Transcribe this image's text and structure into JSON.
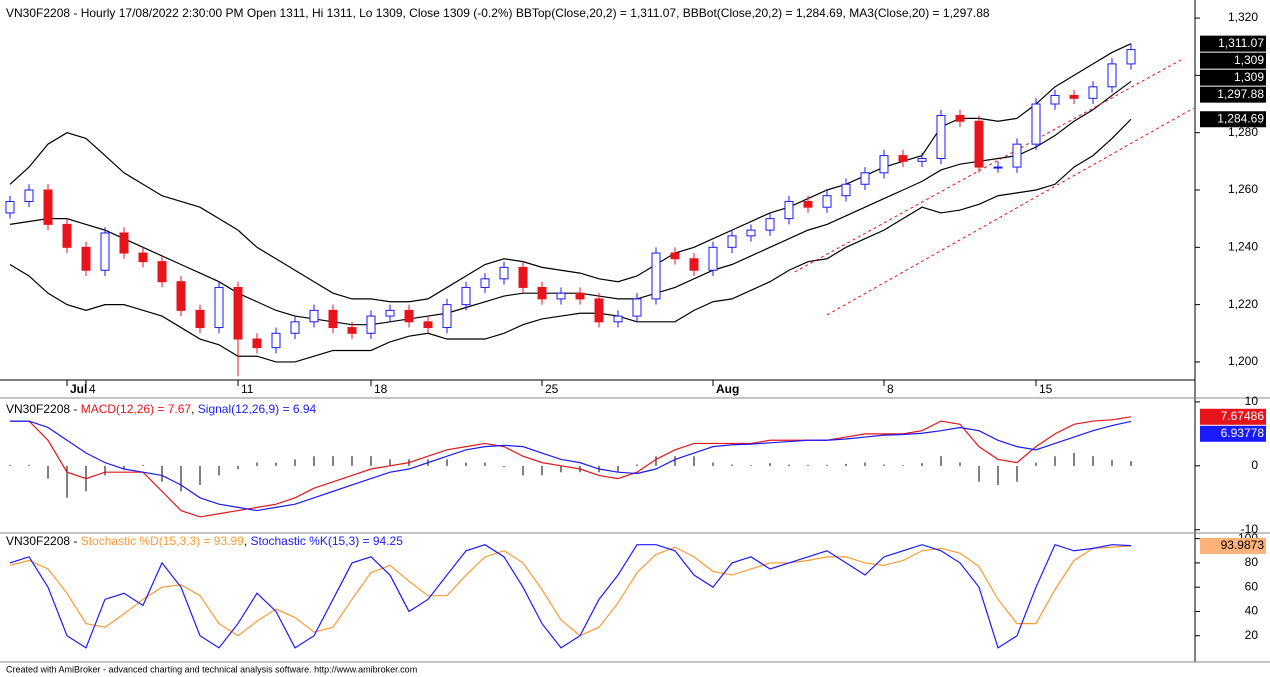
{
  "chart_data": [
    {
      "type": "candlestick",
      "title": "VN30F2208 - Hourly 17/08/2022 2:30:00 PM Open 1311, Hi 1311, Lo 1309, Close 1309 (-0.2%) BBTop(Close,20,2) = 1,311.07, BBBot(Close,20,2) = 1,284.69, MA3(Close,20) = 1,297.88",
      "categories": [
        null,
        null,
        null,
        "Jul",
        "4",
        null,
        null,
        null,
        null,
        null,
        null,
        null,
        "11",
        null,
        null,
        null,
        null,
        null,
        null,
        "18",
        null,
        null,
        null,
        null,
        null,
        null,
        null,
        null,
        "25",
        null,
        null,
        null,
        null,
        null,
        null,
        null,
        null,
        "Aug",
        null,
        null,
        null,
        null,
        null,
        null,
        null,
        null,
        "8",
        null,
        null,
        null,
        null,
        null,
        null,
        null,
        "15",
        null,
        null,
        null,
        null,
        null
      ],
      "open": [
        1252,
        1256,
        1260,
        1248,
        1240,
        1232,
        1245,
        1238,
        1235,
        1228,
        1218,
        1212,
        1226,
        1208,
        1205,
        1210,
        1214,
        1218,
        1212,
        1210,
        1216,
        1218,
        1214,
        1212,
        1220,
        1226,
        1229,
        1233,
        1226,
        1222,
        1224,
        1222,
        1214,
        1216,
        1222,
        1238,
        1236,
        1232,
        1240,
        1244,
        1246,
        1250,
        1256,
        1254,
        1258,
        1262,
        1266,
        1272,
        1270,
        1271,
        1286,
        1284,
        1268,
        1268,
        1276,
        1290,
        1293,
        1292,
        1296,
        1304
      ],
      "high": [
        1258,
        1262,
        1262,
        1250,
        1242,
        1247,
        1247,
        1240,
        1237,
        1230,
        1220,
        1228,
        1228,
        1210,
        1212,
        1216,
        1220,
        1220,
        1214,
        1218,
        1220,
        1220,
        1216,
        1222,
        1228,
        1231,
        1235,
        1235,
        1228,
        1226,
        1226,
        1224,
        1218,
        1224,
        1240,
        1240,
        1238,
        1242,
        1246,
        1248,
        1252,
        1258,
        1258,
        1260,
        1264,
        1268,
        1274,
        1274,
        1273,
        1288,
        1288,
        1286,
        1270,
        1278,
        1292,
        1295,
        1295,
        1298,
        1306,
        1311
      ],
      "low": [
        1250,
        1254,
        1246,
        1238,
        1230,
        1230,
        1236,
        1233,
        1226,
        1216,
        1210,
        1210,
        1195,
        1203,
        1203,
        1208,
        1212,
        1210,
        1208,
        1208,
        1214,
        1212,
        1210,
        1210,
        1218,
        1224,
        1227,
        1224,
        1220,
        1220,
        1220,
        1212,
        1212,
        1214,
        1220,
        1234,
        1230,
        1230,
        1238,
        1242,
        1244,
        1248,
        1252,
        1252,
        1256,
        1260,
        1264,
        1268,
        1268,
        1269,
        1282,
        1266,
        1266,
        1266,
        1274,
        1288,
        1290,
        1290,
        1294,
        1302
      ],
      "close": [
        1256,
        1260,
        1248,
        1240,
        1232,
        1245,
        1238,
        1235,
        1228,
        1218,
        1212,
        1226,
        1208,
        1205,
        1210,
        1214,
        1218,
        1212,
        1210,
        1216,
        1218,
        1214,
        1212,
        1220,
        1226,
        1229,
        1233,
        1226,
        1222,
        1224,
        1222,
        1214,
        1216,
        1222,
        1238,
        1236,
        1232,
        1240,
        1244,
        1246,
        1250,
        1256,
        1254,
        1258,
        1262,
        1266,
        1272,
        1270,
        1271,
        1286,
        1284,
        1268,
        1268,
        1276,
        1290,
        1293,
        1292,
        1296,
        1304,
        1309
      ],
      "up_color": "#1a1aff",
      "down_color": "#e8141b",
      "series": [
        {
          "name": "BBTop(Close,20,2)",
          "color": "#000000",
          "values": [
            1262,
            1268,
            1276,
            1280,
            1278,
            1272,
            1266,
            1262,
            1258,
            1256,
            1254,
            1250,
            1246,
            1240,
            1236,
            1232,
            1228,
            1224,
            1222,
            1222,
            1221,
            1221,
            1222,
            1226,
            1230,
            1234,
            1236,
            1235,
            1233,
            1232,
            1231,
            1229,
            1228,
            1230,
            1234,
            1238,
            1240,
            1243,
            1246,
            1249,
            1252,
            1254,
            1257,
            1260,
            1262,
            1265,
            1268,
            1270,
            1272,
            1282,
            1285,
            1285,
            1284,
            1285,
            1290,
            1296,
            1300,
            1304,
            1308,
            1311.07
          ]
        },
        {
          "name": "MA3(Close,20)",
          "color": "#000000",
          "values": [
            1248,
            1249,
            1250,
            1250,
            1248,
            1246,
            1243,
            1240,
            1237,
            1234,
            1231,
            1228,
            1224,
            1221,
            1218,
            1216,
            1215,
            1214,
            1213,
            1213,
            1214,
            1215,
            1216,
            1217,
            1219,
            1221,
            1223,
            1224,
            1224,
            1224,
            1224,
            1223,
            1222,
            1222,
            1224,
            1226,
            1229,
            1232,
            1234,
            1237,
            1240,
            1243,
            1246,
            1248,
            1251,
            1254,
            1257,
            1260,
            1263,
            1267,
            1269,
            1270,
            1271,
            1272,
            1275,
            1279,
            1284,
            1288,
            1293,
            1297.88
          ]
        },
        {
          "name": "BBBot(Close,20,2)",
          "color": "#000000",
          "values": [
            1234,
            1230,
            1224,
            1220,
            1218,
            1220,
            1220,
            1218,
            1216,
            1212,
            1208,
            1206,
            1202,
            1202,
            1200,
            1200,
            1202,
            1204,
            1204,
            1204,
            1207,
            1209,
            1210,
            1208,
            1208,
            1208,
            1210,
            1213,
            1215,
            1216,
            1217,
            1217,
            1216,
            1214,
            1214,
            1214,
            1218,
            1221,
            1222,
            1225,
            1228,
            1232,
            1235,
            1236,
            1240,
            1243,
            1246,
            1250,
            1254,
            1252,
            1253,
            1255,
            1258,
            1259,
            1260,
            1262,
            1268,
            1272,
            1278,
            1284.69
          ]
        }
      ],
      "trendlines": [
        {
          "color": "#e8141b",
          "x": [
            41.3,
            61.8
          ],
          "values": [
            1231.4,
            1306
          ]
        },
        {
          "color": "#e8141b",
          "x": [
            43,
            62.3
          ],
          "values": [
            1216.4,
            1288.6
          ]
        }
      ],
      "ylim": [
        1193.7,
        1326.3
      ],
      "yticks": [
        {
          "value": 1200,
          "label": "1,200"
        },
        {
          "value": 1220,
          "label": "1,220"
        },
        {
          "value": 1240,
          "label": "1,240"
        },
        {
          "value": 1260,
          "label": "1,260"
        },
        {
          "value": 1280,
          "label": "1,280"
        },
        {
          "value": 1300,
          "label": "1,300"
        },
        {
          "value": 1320,
          "label": "1,320"
        }
      ],
      "tags": [
        {
          "value": 1311.07,
          "label": "1,311.07"
        },
        {
          "value": 1309,
          "label": "1,309"
        },
        {
          "value": 1309,
          "label": "1,309"
        },
        {
          "value": 1297.88,
          "label": "1,297.88"
        },
        {
          "value": 1284.69,
          "label": "1,284.69"
        }
      ],
      "tag_color": "#000000"
    },
    {
      "type": "line",
      "title_parts": [
        {
          "text": "VN30F2208 - ",
          "color": "#000000"
        },
        {
          "text": "MACD(12,26) = 7.67",
          "color": "#e8141b"
        },
        {
          "text": ", ",
          "color": "#000000"
        },
        {
          "text": "Signal(12,26,9) = 6.94",
          "color": "#1a1aff"
        }
      ],
      "series": [
        {
          "name": "MACD(12,26)",
          "color": "#e8141b",
          "values": [
            7,
            7,
            4,
            -1,
            -2,
            -1,
            -1,
            -1,
            -4,
            -7,
            -8,
            -7.5,
            -7,
            -6.5,
            -6,
            -5,
            -3.5,
            -2.5,
            -1.5,
            -0.5,
            0,
            0.5,
            1.5,
            2.5,
            3,
            3.5,
            3,
            1.5,
            0.5,
            0,
            -0.5,
            -1.5,
            -2,
            -1,
            1,
            2.5,
            3.5,
            3.5,
            3.5,
            3.5,
            4,
            4,
            4,
            4,
            4.5,
            5,
            5,
            5,
            5.5,
            7,
            6.5,
            3,
            1,
            0.5,
            3,
            5,
            6.5,
            7,
            7.2,
            7.67
          ]
        },
        {
          "name": "Signal(12,26,9)",
          "color": "#1a1aff",
          "values": [
            7,
            7,
            6,
            4,
            2,
            0.5,
            -0.5,
            -1,
            -1.5,
            -3,
            -5,
            -6,
            -6.5,
            -7,
            -6.5,
            -6,
            -5,
            -4,
            -3,
            -2,
            -1,
            -0.5,
            0.5,
            1.5,
            2.5,
            3,
            3.2,
            3,
            2,
            1,
            0.5,
            -0.5,
            -1,
            -1.2,
            -0.5,
            1,
            2,
            3,
            3.3,
            3.4,
            3.6,
            3.8,
            4,
            4,
            4.2,
            4.5,
            4.8,
            4.9,
            5.1,
            5.5,
            6,
            5.5,
            4,
            3,
            2.5,
            3.5,
            4.5,
            5.5,
            6.3,
            6.94
          ]
        }
      ],
      "histogram": {
        "color": "#000000",
        "values": [
          0,
          0,
          -2,
          -5,
          -4,
          -1.5,
          -0.5,
          0,
          -2.5,
          -4,
          -3,
          -1.5,
          -0.5,
          0.5,
          0.5,
          1,
          1.5,
          1.5,
          1.5,
          1.5,
          1,
          1,
          1,
          1,
          0.5,
          0.5,
          -0.2,
          -1.5,
          -1.5,
          -1,
          -1,
          -1,
          -1,
          0.2,
          1.5,
          1.5,
          1.5,
          0.5,
          0.2,
          0.1,
          0.4,
          0.2,
          0,
          0,
          0.3,
          0.5,
          0.2,
          0.1,
          0.4,
          1.5,
          0.5,
          -2.5,
          -3,
          -2.5,
          0.5,
          1.5,
          2,
          1.5,
          0.9,
          0.73
        ]
      },
      "ylim": [
        -10.2,
        10.3
      ],
      "yticks": [
        -10,
        0,
        10
      ],
      "tags": [
        {
          "value": 7.67486,
          "color": "#e8141b",
          "text_color": "#ffffff"
        },
        {
          "value": 6.93778,
          "color": "#1a1aff",
          "text_color": "#ffffff"
        }
      ]
    },
    {
      "type": "line",
      "title_parts": [
        {
          "text": "VN30F2208 - ",
          "color": "#000000"
        },
        {
          "text": "Stochastic %D(15,3,3) = 93.99",
          "color": "#ff9933"
        },
        {
          "text": ", ",
          "color": "#000000"
        },
        {
          "text": "Stochastic %K(15,3) = 94.25",
          "color": "#1a1aff"
        }
      ],
      "series": [
        {
          "name": "Stochastic %D(15,3,3)",
          "color": "#ff9933",
          "values": [
            78,
            82,
            75,
            55,
            30,
            27,
            38,
            50,
            60,
            62,
            53,
            30,
            20,
            32,
            42,
            35,
            23,
            27,
            50,
            72,
            78,
            65,
            53,
            53,
            70,
            85,
            90,
            80,
            58,
            33,
            20,
            27,
            47,
            72,
            87,
            93,
            85,
            73,
            70,
            75,
            80,
            80,
            82,
            85,
            85,
            80,
            78,
            82,
            90,
            92,
            88,
            77,
            50,
            30,
            30,
            58,
            82,
            92,
            93,
            93.99
          ]
        },
        {
          "name": "Stochastic %K(15,3)",
          "color": "#1a1aff",
          "values": [
            80,
            85,
            60,
            20,
            10,
            50,
            55,
            45,
            80,
            60,
            20,
            10,
            30,
            55,
            40,
            10,
            20,
            50,
            80,
            85,
            70,
            40,
            50,
            70,
            90,
            95,
            85,
            60,
            30,
            10,
            20,
            50,
            70,
            95,
            95,
            90,
            70,
            60,
            80,
            85,
            75,
            80,
            85,
            90,
            80,
            70,
            85,
            90,
            95,
            90,
            80,
            60,
            10,
            20,
            60,
            95,
            90,
            92,
            95,
            94.25
          ]
        }
      ],
      "ylim": [
        0,
        103
      ],
      "yticks": [
        20,
        40,
        60,
        80,
        100
      ],
      "tags": [
        {
          "value": 93.9873,
          "color": "#ffb27a",
          "text_color": "#000000"
        }
      ]
    }
  ],
  "footer": "Created with AmiBroker - advanced charting and technical analysis software. http://www.amibroker.com"
}
